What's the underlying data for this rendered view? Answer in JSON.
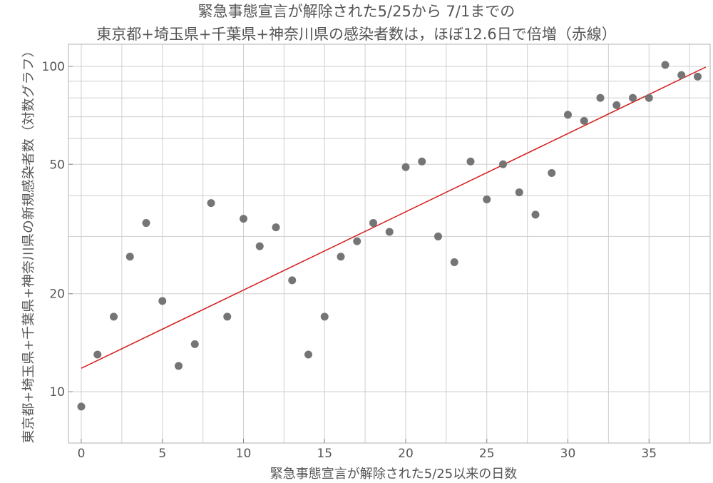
{
  "title_lines": [
    "緊急事態宣言が解除された5/25から 7/1までの",
    "東京都+埼玉県+千葉県+神奈川県の感染者数は，ほぼ12.6日で倍増（赤線）"
  ],
  "chart_data": {
    "type": "scatter",
    "xlabel": "緊急事態宣言が解除された5/25以来の日数",
    "ylabel": "東京都+埼玉県+千葉県+神奈川県の新規感染者数（対数グラフ）",
    "xlim": [
      -0.5,
      38.5
    ],
    "ylim": [
      7.3,
      118
    ],
    "y_scale": "log",
    "grid": true,
    "x_ticks": [
      0,
      5,
      10,
      15,
      20,
      25,
      30,
      35
    ],
    "y_ticks": [
      10,
      20,
      50,
      100
    ],
    "x_minor_grid": [
      2.5,
      7.5,
      12.5,
      17.5,
      22.5,
      27.5,
      32.5,
      37.5
    ],
    "y_minor_grid": [
      30,
      40,
      60,
      70,
      80,
      90
    ],
    "points": [
      [
        0,
        9
      ],
      [
        1,
        13
      ],
      [
        2,
        17
      ],
      [
        3,
        26
      ],
      [
        4,
        33
      ],
      [
        5,
        19
      ],
      [
        6,
        12
      ],
      [
        7,
        14
      ],
      [
        8,
        38
      ],
      [
        9,
        17
      ],
      [
        10,
        34
      ],
      [
        11,
        28
      ],
      [
        12,
        32
      ],
      [
        13,
        22
      ],
      [
        14,
        13
      ],
      [
        15,
        17
      ],
      [
        16,
        26
      ],
      [
        17,
        29
      ],
      [
        18,
        33
      ],
      [
        19,
        31
      ],
      [
        20,
        49
      ],
      [
        21,
        51
      ],
      [
        22,
        30
      ],
      [
        23,
        25
      ],
      [
        24,
        51
      ],
      [
        25,
        39
      ],
      [
        26,
        50
      ],
      [
        27,
        41
      ],
      [
        28,
        35
      ],
      [
        29,
        47
      ],
      [
        30,
        71
      ],
      [
        31,
        68
      ],
      [
        32,
        80
      ],
      [
        33,
        76
      ],
      [
        34,
        80
      ],
      [
        35,
        80
      ],
      [
        36,
        101
      ],
      [
        37,
        94
      ],
      [
        38,
        93
      ]
    ],
    "trend_line": {
      "x": [
        0,
        38.5
      ],
      "y": [
        11.8,
        99.5
      ],
      "doubling_days": 12.6,
      "color": "#d61a1a"
    },
    "point_color": "#757575",
    "grid_color": "#cfcfcf",
    "frame_color": "#b0b0b0"
  }
}
